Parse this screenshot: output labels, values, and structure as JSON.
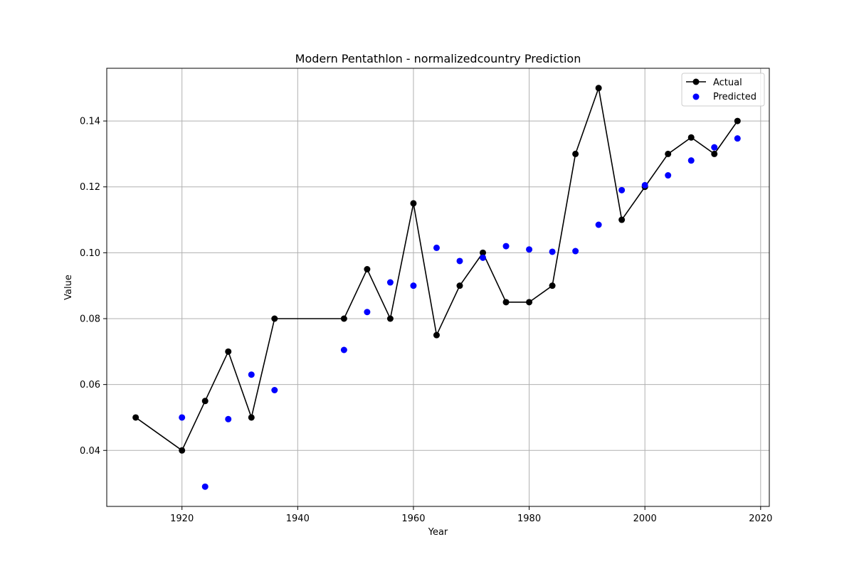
{
  "chart_data": {
    "type": "line",
    "title": "Modern Pentathlon - normalizedcountry Prediction",
    "xlabel": "Year",
    "ylabel": "Value",
    "xlim": [
      1907,
      2021.5
    ],
    "ylim": [
      0.023,
      0.156
    ],
    "xticks": [
      1920,
      1940,
      1960,
      1980,
      2000,
      2020
    ],
    "yticks": [
      0.04,
      0.06,
      0.08,
      0.1,
      0.12,
      0.14
    ],
    "ytick_labels": [
      "0.04",
      "0.06",
      "0.08",
      "0.10",
      "0.12",
      "0.14"
    ],
    "grid": true,
    "legend_position": "top-right",
    "series": [
      {
        "name": "Actual",
        "kind": "line-with-markers",
        "color": "#000000",
        "x": [
          1912,
          1920,
          1924,
          1928,
          1932,
          1936,
          1948,
          1952,
          1956,
          1960,
          1964,
          1968,
          1972,
          1976,
          1980,
          1984,
          1988,
          1992,
          1996,
          2000,
          2004,
          2008,
          2012,
          2016
        ],
        "y": [
          0.05,
          0.04,
          0.055,
          0.07,
          0.05,
          0.08,
          0.08,
          0.095,
          0.08,
          0.115,
          0.075,
          0.09,
          0.1,
          0.085,
          0.085,
          0.09,
          0.13,
          0.15,
          0.11,
          0.12,
          0.13,
          0.135,
          0.13,
          0.14
        ]
      },
      {
        "name": "Predicted",
        "kind": "scatter",
        "color": "#0000ff",
        "x": [
          1920,
          1924,
          1928,
          1932,
          1936,
          1948,
          1952,
          1956,
          1960,
          1964,
          1968,
          1972,
          1976,
          1980,
          1984,
          1988,
          1992,
          1996,
          2000,
          2004,
          2008,
          2012,
          2016
        ],
        "y": [
          0.05,
          0.029,
          0.0495,
          0.063,
          0.0583,
          0.0705,
          0.082,
          0.091,
          0.09,
          0.1015,
          0.0975,
          0.0985,
          0.102,
          0.101,
          0.1003,
          0.1005,
          0.1085,
          0.119,
          0.1205,
          0.1235,
          0.128,
          0.132,
          0.1347
        ]
      }
    ]
  }
}
